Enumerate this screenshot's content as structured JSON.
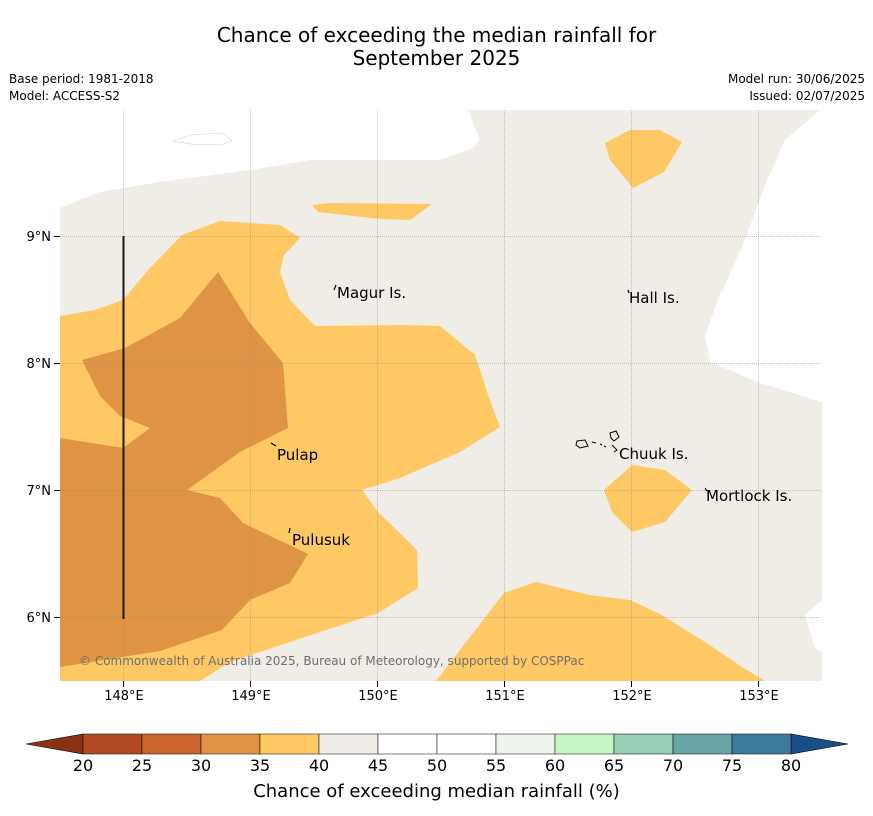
{
  "header": {
    "title_line1": "Chance of exceeding the median rainfall for",
    "title_line2": "September 2025",
    "base_period": "Base period: 1981-2018",
    "model": "Model: ACCESS-S2",
    "model_run": "Model run: 30/06/2025",
    "issued": "Issued: 02/07/2025"
  },
  "map": {
    "lon_ticks": [
      "148°E",
      "149°E",
      "150°E",
      "151°E",
      "152°E",
      "153°E"
    ],
    "lat_ticks": [
      "9°N",
      "8°N",
      "7°N",
      "6°N"
    ],
    "places": [
      "Magur Is.",
      "Hall Is.",
      "Pulap",
      "Chuuk Is.",
      "Mortlock Is.",
      "Pulusuk"
    ],
    "copyright": "© Commonwealth of Australia 2025, Bureau of Meteorology, supported by COSPPac"
  },
  "colorbar": {
    "title": "Chance of exceeding median rainfall (%)",
    "ticks": [
      "20",
      "25",
      "30",
      "35",
      "40",
      "45",
      "50",
      "55",
      "60",
      "65",
      "70",
      "75",
      "80"
    ],
    "colors": [
      "#b14a23",
      "#cc6530",
      "#df9445",
      "#fec965",
      "#f0ece6",
      "#ffffff",
      "#ffffff",
      "#eef5e8",
      "#c6f5c5",
      "#9acfb6",
      "#6aa6a7",
      "#3d7a9b"
    ],
    "under_color": "#8b3215",
    "over_color": "#184f86"
  }
}
